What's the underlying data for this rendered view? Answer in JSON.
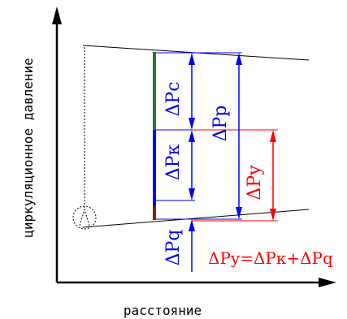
{
  "axes": {
    "y_label": "циркуляционное давление",
    "x_label": "расстояние"
  },
  "labels": {
    "dpc": "ΔPc",
    "dpk": "ΔPк",
    "dpp": "ΔPp",
    "dpy": "ΔPy",
    "dpq": "ΔPq",
    "formula": "ΔPy=ΔPк+ΔPq"
  },
  "colors": {
    "line": "#000000",
    "blue": "#0000ff",
    "red": "#ff0000",
    "green": "#1f7a3a",
    "dark_red": "#8b1a1a"
  }
}
